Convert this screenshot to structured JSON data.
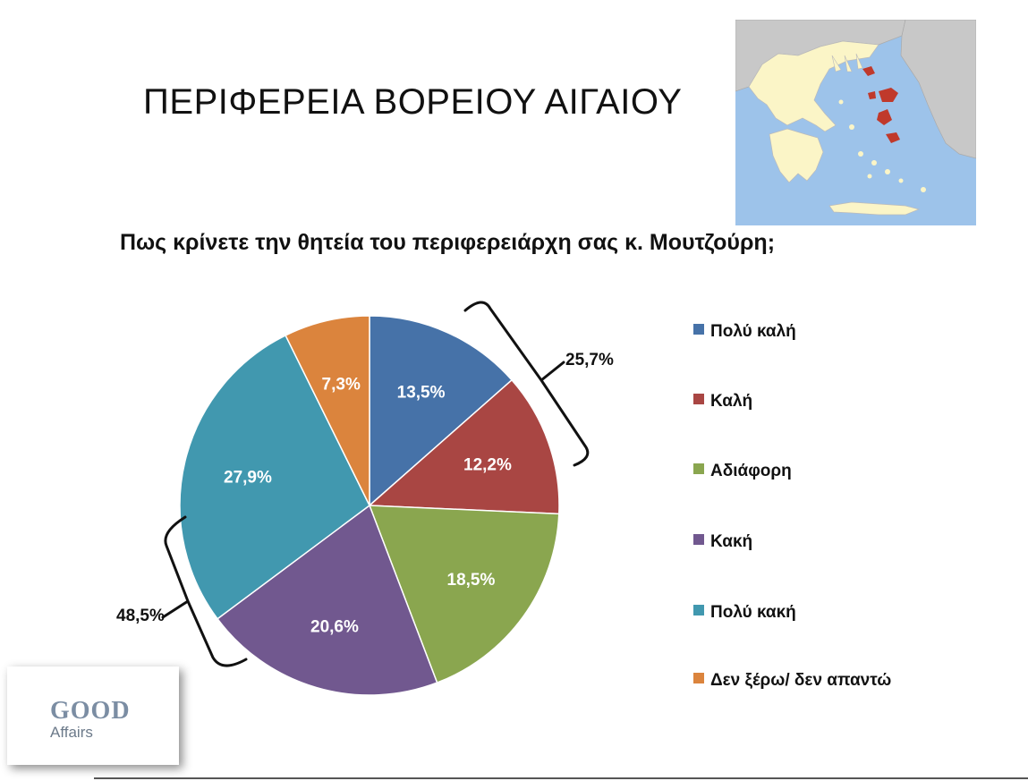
{
  "header": {
    "title": "ΠΕΡΙΦΕΡΕΙΑ ΒΟΡΕΙΟΥ ΑΙΓΑΙΟΥ"
  },
  "map": {
    "sea_color": "#9dc3ea",
    "land_color": "#fbf5c7",
    "neighbor_color": "#c8c8c8",
    "highlight_color": "#c0392b"
  },
  "logo": {
    "line1": "GOOD",
    "line2": "Affairs"
  },
  "chart_data": {
    "type": "pie",
    "title": "Πως κρίνετε την θητεία του περιφερειάρχη σας κ. Μουτζούρη;",
    "slices": [
      {
        "label": "Πολύ καλή",
        "value": 13.5,
        "text": "13,5%",
        "color": "#4672a8"
      },
      {
        "label": "Καλή",
        "value": 12.2,
        "text": "12,2%",
        "color": "#a94643"
      },
      {
        "label": "Αδιάφορη",
        "value": 18.5,
        "text": "18,5%",
        "color": "#8aa64f"
      },
      {
        "label": "Κακή",
        "value": 20.6,
        "text": "20,6%",
        "color": "#71588f"
      },
      {
        "label": "Πολύ κακή",
        "value": 27.9,
        "text": "27,9%",
        "color": "#4198af"
      },
      {
        "label": "Δεν ξέρω/ δεν απαντώ",
        "value": 7.3,
        "text": "7,3%",
        "color": "#db843d"
      }
    ],
    "legend_position": "right",
    "annotations": [
      {
        "text": "25,7%",
        "groups": [
          "Πολύ καλή",
          "Καλή"
        ]
      },
      {
        "text": "48,5%",
        "groups": [
          "Κακή",
          "Πολύ κακή"
        ]
      }
    ]
  }
}
